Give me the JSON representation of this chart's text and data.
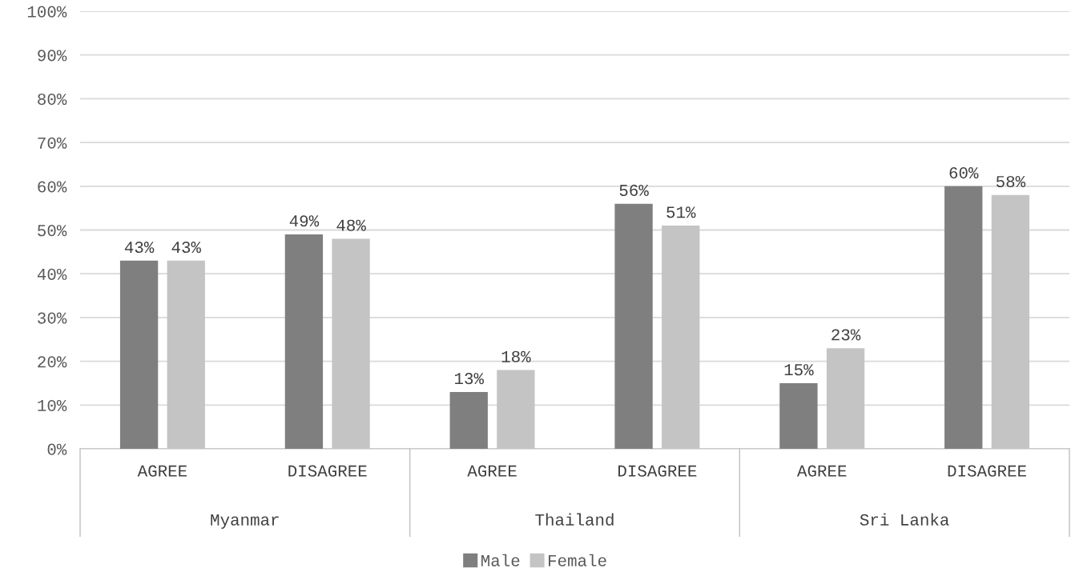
{
  "chart_data": {
    "type": "bar",
    "categories": [
      "AGREE",
      "DISAGREE",
      "AGREE",
      "DISAGREE",
      "AGREE",
      "DISAGREE"
    ],
    "series": [
      {
        "name": "Male",
        "color": "#7f7f7f",
        "values": [
          43,
          49,
          13,
          56,
          15,
          60
        ],
        "value_labels": [
          "43%",
          "49%",
          "13%",
          "56%",
          "15%",
          "60%"
        ]
      },
      {
        "name": "Female",
        "color": "#c4c4c4",
        "values": [
          43,
          48,
          18,
          51,
          23,
          58
        ],
        "value_labels": [
          "43%",
          "48%",
          "18%",
          "51%",
          "23%",
          "58%"
        ]
      }
    ],
    "annotations": [
      "Myanmar",
      "Thailand",
      "Sri Lanka"
    ],
    "ylim": [
      0,
      100
    ],
    "yticks": [
      {
        "value": 0,
        "label": "0%"
      },
      {
        "value": 10,
        "label": "10%"
      },
      {
        "value": 20,
        "label": "20%"
      },
      {
        "value": 30,
        "label": "30%"
      },
      {
        "value": 40,
        "label": "40%"
      },
      {
        "value": 50,
        "label": "50%"
      },
      {
        "value": 60,
        "label": "60%"
      },
      {
        "value": 70,
        "label": "70%"
      },
      {
        "value": 80,
        "label": "80%"
      },
      {
        "value": 90,
        "label": "90%"
      },
      {
        "value": 100,
        "label": "100%"
      }
    ],
    "grid": "y",
    "legend": "bottom"
  }
}
